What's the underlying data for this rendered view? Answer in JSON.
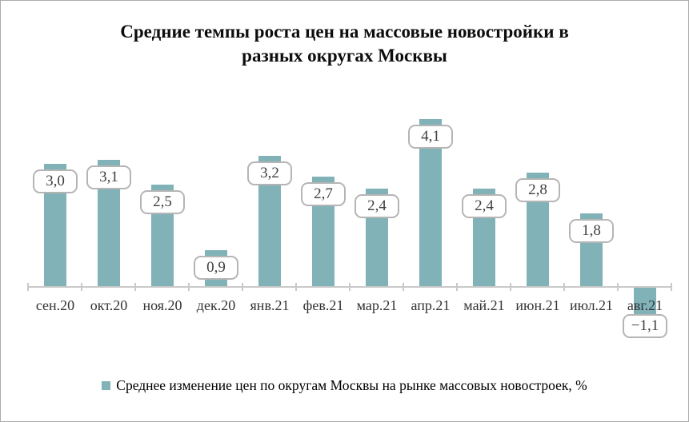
{
  "title": {
    "text": "Средние темпы роста цен на массовые новостройки  в\nразных округах Москвы"
  },
  "legend": {
    "label": "Среднее изменение цен по округам Москвы на рынке массовых новостроек, %"
  },
  "colors": {
    "bar": "#80b2b8",
    "axis": "#c9c9c9",
    "label_box_border": "#b5b5b5",
    "label_text": "#404040",
    "category_text": "#333333",
    "frame_border": "#ababab"
  },
  "chart_data": {
    "type": "bar",
    "title": "Средние темпы роста цен на массовые новостройки в разных округах Москвы",
    "categories": [
      "сен.20",
      "окт.20",
      "ноя.20",
      "дек.20",
      "янв.21",
      "фев.21",
      "мар.21",
      "апр.21",
      "май.21",
      "июн.21",
      "июл.21",
      "авг.21"
    ],
    "values": [
      3.0,
      3.1,
      2.5,
      0.9,
      3.2,
      2.7,
      2.4,
      4.1,
      2.4,
      2.8,
      1.8,
      -1.1
    ],
    "data_labels": [
      "3,0",
      "3,1",
      "2,5",
      "0,9",
      "3,2",
      "2,7",
      "2,4",
      "4,1",
      "2,4",
      "2,8",
      "1,8",
      "−1,1"
    ],
    "xlabel": "",
    "ylabel": "",
    "ylim": [
      -1.5,
      4.5
    ],
    "grid": false,
    "bar_color": "#80b2b8",
    "legend_entries": [
      "Среднее изменение цен по округам Москвы на рынке массовых новостроек, %"
    ],
    "legend_position": "bottom",
    "data_label_style": "rounded-box",
    "decimal_separator": ","
  }
}
